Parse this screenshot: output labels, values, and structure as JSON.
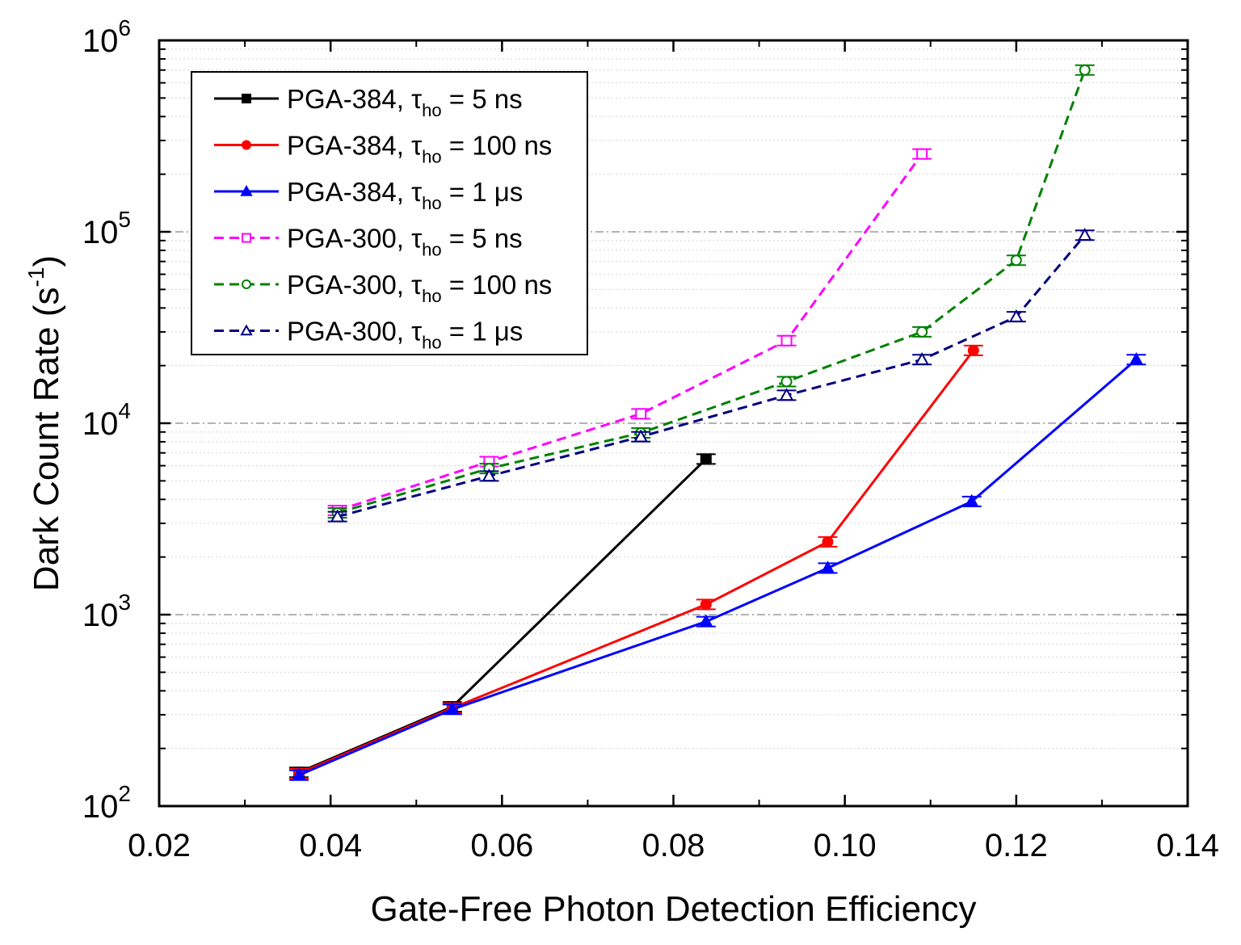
{
  "chart_data": {
    "type": "line",
    "title": "",
    "xlabel": "Gate-Free Photon Detection Efficiency",
    "ylabel": "Dark Count Rate (s",
    "ylabel_superscript": "-1",
    "ylabel_suffix": ")",
    "xlim": [
      0.02,
      0.14
    ],
    "ylim": [
      100,
      1000000
    ],
    "yscale": "log",
    "x_ticks": [
      0.02,
      0.04,
      0.06,
      0.08,
      0.1,
      0.12,
      0.14
    ],
    "x_tick_labels": [
      "0.02",
      "0.04",
      "0.06",
      "0.08",
      "0.10",
      "0.12",
      "0.14"
    ],
    "y_tick_bases": [
      "10",
      "10",
      "10",
      "10",
      "10"
    ],
    "y_tick_exponents": [
      "2",
      "3",
      "4",
      "5",
      "6"
    ],
    "y_tick_values": [
      100,
      1000,
      10000,
      100000,
      1000000
    ],
    "grid": true,
    "legend_position": "top-left",
    "series": [
      {
        "name": "PGA-384, τho = 5 ns",
        "label_main": "PGA-384, τ",
        "label_sub": "ho",
        "label_rest": " = 5 ns",
        "color": "#000000",
        "dashed": false,
        "marker": "square",
        "filled": true,
        "x": [
          0.0363,
          0.0542,
          0.0838
        ],
        "y": [
          150,
          330,
          6500
        ]
      },
      {
        "name": "PGA-384, τho = 100 ns",
        "label_main": "PGA-384, τ",
        "label_sub": "ho",
        "label_rest": " = 100 ns",
        "color": "#ff0000",
        "dashed": false,
        "marker": "circle",
        "filled": true,
        "x": [
          0.0363,
          0.0542,
          0.0838,
          0.098,
          0.115
        ],
        "y": [
          148,
          325,
          1130,
          2400,
          24000
        ]
      },
      {
        "name": "PGA-384, τho = 1 μs",
        "label_main": "PGA-384, τ",
        "label_sub": "ho",
        "label_rest": " = 1 μs",
        "color": "#0000ff",
        "dashed": false,
        "marker": "triangle",
        "filled": true,
        "x": [
          0.0363,
          0.0542,
          0.0838,
          0.098,
          0.1148,
          0.134
        ],
        "y": [
          145,
          320,
          920,
          1750,
          3900,
          21500
        ]
      },
      {
        "name": "PGA-300, τho = 5 ns",
        "label_main": "PGA-300, τ",
        "label_sub": "ho",
        "label_rest": " = 5 ns",
        "color": "#ff00ff",
        "dashed": true,
        "marker": "square",
        "filled": false,
        "x": [
          0.0408,
          0.0585,
          0.0762,
          0.0932,
          0.109
        ],
        "y": [
          3500,
          6300,
          11200,
          27000,
          255000
        ]
      },
      {
        "name": "PGA-300, τho = 100 ns",
        "label_main": "PGA-300, τ",
        "label_sub": "ho",
        "label_rest": " = 100 ns",
        "color": "#008000",
        "dashed": true,
        "marker": "circle",
        "filled": false,
        "x": [
          0.0408,
          0.0585,
          0.0762,
          0.0932,
          0.109,
          0.12,
          0.128
        ],
        "y": [
          3400,
          5800,
          8900,
          16500,
          30000,
          71000,
          700000
        ]
      },
      {
        "name": "PGA-300, τho = 1 μs",
        "label_main": "PGA-300, τ",
        "label_sub": "ho",
        "label_rest": " = 1 μs",
        "color": "#000080",
        "dashed": true,
        "marker": "triangle",
        "filled": false,
        "x": [
          0.0408,
          0.0585,
          0.0762,
          0.0932,
          0.109,
          0.12,
          0.128
        ],
        "y": [
          3250,
          5300,
          8500,
          14000,
          21500,
          36000,
          96000
        ]
      }
    ]
  }
}
